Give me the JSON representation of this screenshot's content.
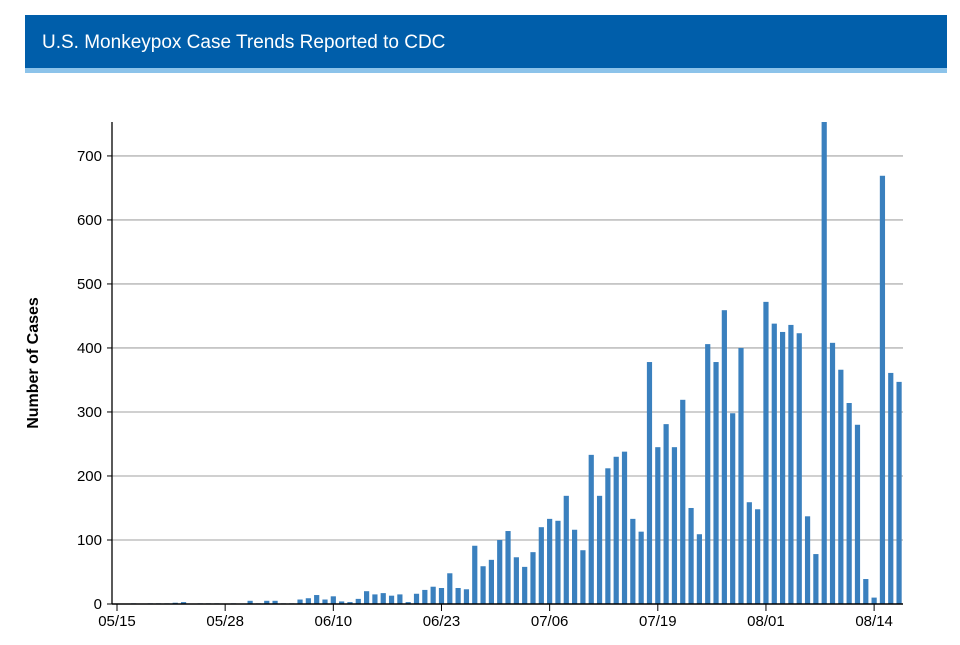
{
  "header": {
    "title": "U.S. Monkeypox Case Trends Reported to CDC"
  },
  "colors": {
    "header": "#005eaa",
    "header_stripe": "#8cc3ea",
    "bar": "#3a80be",
    "grid": "#b3b3b3"
  },
  "chart_data": {
    "type": "bar",
    "title": "U.S. Monkeypox Case Trends Reported to CDC",
    "xlabel": "",
    "ylabel": "Number of Cases",
    "ylim": [
      0,
      753
    ],
    "yticks": [
      0,
      100,
      200,
      300,
      400,
      500,
      600,
      700
    ],
    "xtick_labels": [
      "05/15",
      "05/28",
      "06/10",
      "06/23",
      "07/06",
      "07/19",
      "08/01",
      "08/14"
    ],
    "grid": "horizontal",
    "categories": [
      "05/15",
      "05/16",
      "05/17",
      "05/18",
      "05/19",
      "05/20",
      "05/21",
      "05/22",
      "05/23",
      "05/24",
      "05/25",
      "05/26",
      "05/27",
      "05/28",
      "05/29",
      "05/30",
      "05/31",
      "06/01",
      "06/02",
      "06/03",
      "06/04",
      "06/05",
      "06/06",
      "06/07",
      "06/08",
      "06/09",
      "06/10",
      "06/11",
      "06/12",
      "06/13",
      "06/14",
      "06/15",
      "06/16",
      "06/17",
      "06/18",
      "06/19",
      "06/20",
      "06/21",
      "06/22",
      "06/23",
      "06/24",
      "06/25",
      "06/26",
      "06/27",
      "06/28",
      "06/29",
      "06/30",
      "07/01",
      "07/02",
      "07/03",
      "07/04",
      "07/05",
      "07/06",
      "07/07",
      "07/08",
      "07/09",
      "07/10",
      "07/11",
      "07/12",
      "07/13",
      "07/14",
      "07/15",
      "07/16",
      "07/17",
      "07/18",
      "07/19",
      "07/20",
      "07/21",
      "07/22",
      "07/23",
      "07/24",
      "07/25",
      "07/26",
      "07/27",
      "07/28",
      "07/29",
      "07/30",
      "07/31",
      "08/01",
      "08/02",
      "08/03",
      "08/04",
      "08/05",
      "08/06",
      "08/07",
      "08/08",
      "08/09",
      "08/10",
      "08/11",
      "08/12",
      "08/13",
      "08/14",
      "08/15",
      "08/16",
      "08/17"
    ],
    "values": [
      0,
      0,
      1,
      0,
      1,
      1,
      1,
      2,
      3,
      0,
      1,
      1,
      1,
      0,
      1,
      0,
      5,
      1,
      5,
      5,
      1,
      1,
      7,
      9,
      14,
      7,
      12,
      4,
      3,
      8,
      20,
      15,
      17,
      13,
      15,
      3,
      16,
      22,
      27,
      25,
      48,
      25,
      23,
      91,
      59,
      69,
      100,
      114,
      73,
      58,
      81,
      120,
      133,
      130,
      169,
      116,
      84,
      233,
      169,
      212,
      230,
      238,
      133,
      113,
      378,
      245,
      281,
      245,
      319,
      150,
      109,
      406,
      378,
      459,
      298,
      400,
      159,
      148,
      472,
      438,
      425,
      436,
      423,
      137,
      78,
      753,
      408,
      366,
      314,
      280,
      39,
      10,
      669,
      361,
      347
    ]
  }
}
